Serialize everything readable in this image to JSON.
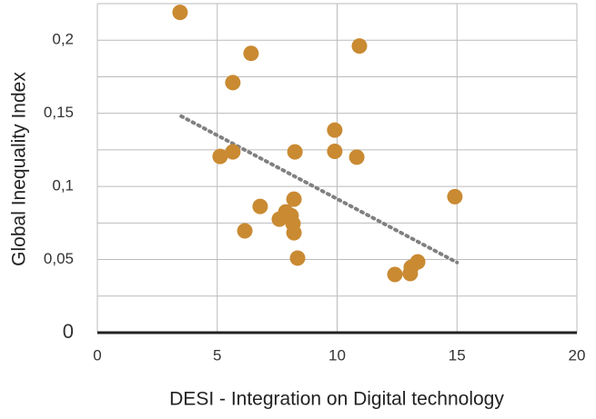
{
  "chart_data": {
    "type": "scatter",
    "x_label": "DESI - Integration on Digital technology",
    "y_label": "Global Inequality Index",
    "xlim": [
      0,
      20
    ],
    "ylim": [
      0,
      0.225
    ],
    "xticks": [
      0,
      5,
      10,
      15,
      20
    ],
    "yticks": [
      0,
      {
        "value": 0.05,
        "label": "0,05"
      },
      {
        "value": 0.1,
        "label": "0,1"
      },
      {
        "value": 0.15,
        "label": "0,15"
      },
      {
        "value": 0.2,
        "label": "0,2"
      }
    ],
    "y_minor_ticks": [
      0.025,
      0.075,
      0.125,
      0.175,
      0.225
    ],
    "grid": true,
    "color": "#c98a32",
    "x": [
      3.45,
      6.41,
      10.93,
      5.65,
      9.9,
      5.12,
      5.65,
      8.24,
      9.9,
      10.82,
      14.91,
      8.2,
      6.79,
      7.86,
      8.08,
      7.59,
      8.16,
      8.2,
      6.15,
      8.35,
      12.41,
      13.05,
      13.09,
      13.36
    ],
    "y": [
      0.219,
      0.191,
      0.196,
      0.171,
      0.1385,
      0.1205,
      0.1236,
      0.1236,
      0.124,
      0.12,
      0.093,
      0.0913,
      0.0863,
      0.0826,
      0.08,
      0.0776,
      0.0745,
      0.0683,
      0.0696,
      0.051,
      0.0398,
      0.0404,
      0.0447,
      0.0484
    ],
    "trendline": {
      "color": "#808080",
      "x": [
        3.5,
        15
      ],
      "y": [
        0.148,
        0.048
      ]
    }
  }
}
